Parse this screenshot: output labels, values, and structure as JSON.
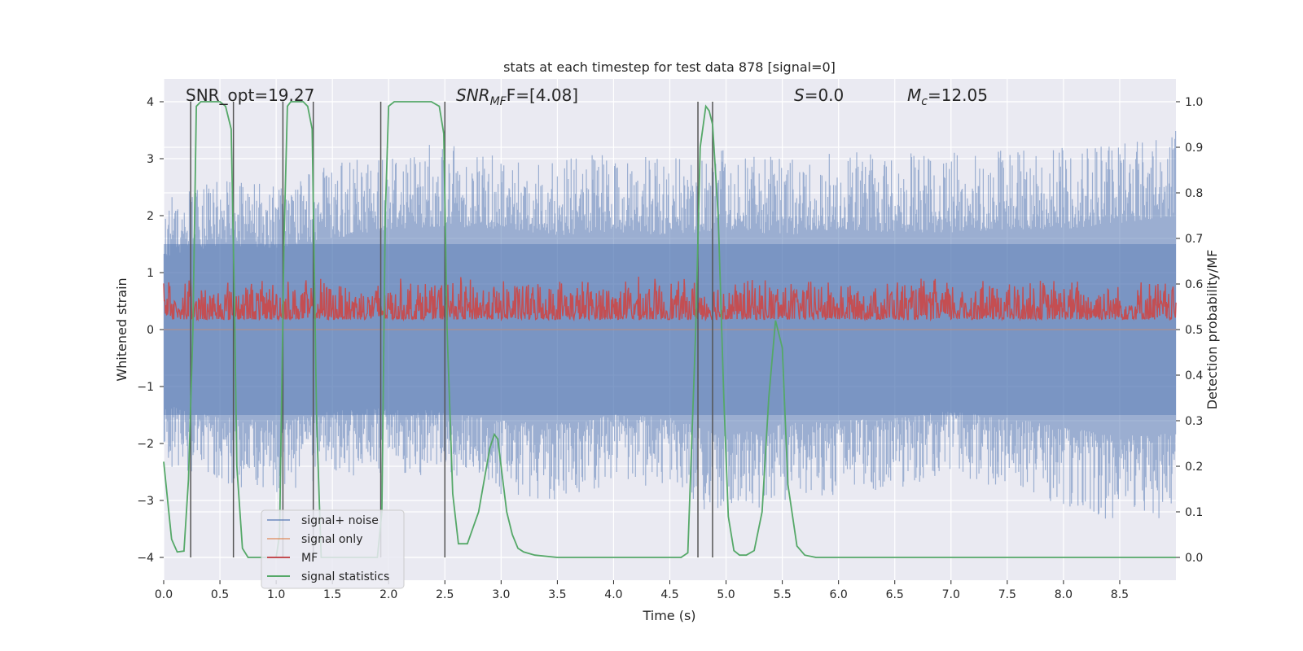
{
  "chart_data": {
    "type": "line",
    "title": "stats at each timestep for test data 878 [signal=0]",
    "xlabel": "Time (s)",
    "ylabel": "Whitened strain",
    "y2label": "Detection probability/MF",
    "xlim": [
      0.0,
      9.0
    ],
    "ylim": [
      -4.4,
      4.4
    ],
    "y2lim": [
      -0.05,
      1.05
    ],
    "grid": true,
    "legend_position": "lower-left",
    "x_ticks": [
      0.0,
      0.5,
      1.0,
      1.5,
      2.0,
      2.5,
      3.0,
      3.5,
      4.0,
      4.5,
      5.0,
      5.5,
      6.0,
      6.5,
      7.0,
      7.5,
      8.0,
      8.5
    ],
    "x_tick_labels": [
      "0.0",
      "0.5",
      "1.0",
      "1.5",
      "2.0",
      "2.5",
      "3.0",
      "3.5",
      "4.0",
      "4.5",
      "5.0",
      "5.5",
      "6.0",
      "6.5",
      "7.0",
      "7.5",
      "8.0",
      "8.5"
    ],
    "y_ticks": [
      -4,
      -3,
      -2,
      -1,
      0,
      1,
      2,
      3,
      4
    ],
    "y_tick_labels": [
      "−4",
      "−3",
      "−2",
      "−1",
      "0",
      "1",
      "2",
      "3",
      "4"
    ],
    "y2_ticks": [
      0.0,
      0.1,
      0.2,
      0.3,
      0.4,
      0.5,
      0.6,
      0.7,
      0.8,
      0.9,
      1.0
    ],
    "y2_tick_labels": [
      "0.0",
      "0.1",
      "0.2",
      "0.3",
      "0.4",
      "0.5",
      "0.6",
      "0.7",
      "0.8",
      "0.9",
      "1.0"
    ],
    "annotations": {
      "snr_opt": "SNR_opt=19.27",
      "snr_mf_main": "SNR",
      "snr_mf_sub": "MF",
      "snr_mf_tail": "F=[4.08]",
      "s_main": "S",
      "s_tail": "=0.0",
      "mc_main": "M",
      "mc_sub": "c",
      "mc_tail": "=12.05"
    },
    "colors": {
      "background": "#eaeaf2",
      "grid": "#ffffff",
      "noise": "#4c72b0",
      "signal_only": "#dd8452",
      "mf": "#c44e52",
      "stat": "#55a868",
      "vline": "#555555"
    },
    "series": [
      {
        "name": "signal+ noise",
        "axis": "left",
        "envelope": {
          "x": [
            0.0,
            0.5,
            1.0,
            1.5,
            2.0,
            2.5,
            3.0,
            3.5,
            4.0,
            4.5,
            5.0,
            5.5,
            6.0,
            6.5,
            7.0,
            7.5,
            8.0,
            8.5,
            9.0
          ],
          "upper": [
            2.3,
            2.7,
            2.6,
            2.9,
            3.2,
            3.3,
            3.2,
            3.0,
            3.1,
            3.0,
            3.2,
            3.0,
            3.2,
            3.1,
            3.1,
            3.2,
            3.2,
            3.4,
            3.6
          ],
          "lower": [
            -2.4,
            -2.8,
            -2.9,
            -2.6,
            -2.5,
            -2.6,
            -2.9,
            -3.0,
            -2.7,
            -2.8,
            -3.4,
            -3.0,
            -2.9,
            -2.8,
            -2.6,
            -2.8,
            -3.1,
            -3.4,
            -3.3
          ]
        }
      },
      {
        "name": "signal only",
        "axis": "left",
        "values": [
          0,
          0
        ]
      },
      {
        "name": "MF",
        "axis": "right",
        "band": [
          0.505,
          0.62
        ]
      },
      {
        "name": "signal statistics",
        "axis": "right",
        "x": [
          0.0,
          0.07,
          0.12,
          0.18,
          0.22,
          0.26,
          0.29,
          0.33,
          0.38,
          0.42,
          0.46,
          0.5,
          0.55,
          0.6,
          0.63,
          0.65,
          0.7,
          0.75,
          0.85,
          1.0,
          1.03,
          1.07,
          1.1,
          1.13,
          1.17,
          1.2,
          1.24,
          1.28,
          1.32,
          1.36,
          1.4,
          1.8,
          1.9,
          1.94,
          1.97,
          2.0,
          2.05,
          2.1,
          2.3,
          2.38,
          2.45,
          2.49,
          2.52,
          2.57,
          2.62,
          2.7,
          2.8,
          2.9,
          2.94,
          2.97,
          3.0,
          3.05,
          3.1,
          3.15,
          3.2,
          3.3,
          3.5,
          4.0,
          4.5,
          4.6,
          4.66,
          4.73,
          4.77,
          4.82,
          4.85,
          4.88,
          4.93,
          4.98,
          5.02,
          5.07,
          5.12,
          5.18,
          5.25,
          5.32,
          5.38,
          5.44,
          5.5,
          5.55,
          5.63,
          5.7,
          5.8,
          6.0,
          7.0,
          8.0,
          9.0
        ],
        "values": [
          0.21,
          0.04,
          0.012,
          0.014,
          0.17,
          0.5,
          0.99,
          1.0,
          1.0,
          1.0,
          1.0,
          1.0,
          0.99,
          0.94,
          0.55,
          0.2,
          0.02,
          0.0,
          0.0,
          0.0,
          0.05,
          0.7,
          0.99,
          1.0,
          1.0,
          1.0,
          1.0,
          0.99,
          0.94,
          0.3,
          0.0,
          0.0,
          0.0,
          0.1,
          0.75,
          0.99,
          1.0,
          1.0,
          1.0,
          1.0,
          0.99,
          0.93,
          0.5,
          0.14,
          0.03,
          0.03,
          0.1,
          0.24,
          0.27,
          0.26,
          0.2,
          0.1,
          0.05,
          0.02,
          0.012,
          0.005,
          0.0,
          0.0,
          0.0,
          0.0,
          0.01,
          0.5,
          0.9,
          0.99,
          0.98,
          0.95,
          0.75,
          0.35,
          0.09,
          0.015,
          0.005,
          0.005,
          0.015,
          0.1,
          0.35,
          0.52,
          0.46,
          0.16,
          0.025,
          0.005,
          0.0,
          0.0,
          0.0,
          0.0,
          0.0
        ]
      }
    ],
    "vlines": [
      0.24,
      0.62,
      1.06,
      1.33,
      1.93,
      2.5,
      4.75,
      4.88
    ],
    "vline_range": [
      0.0,
      1.0
    ]
  }
}
